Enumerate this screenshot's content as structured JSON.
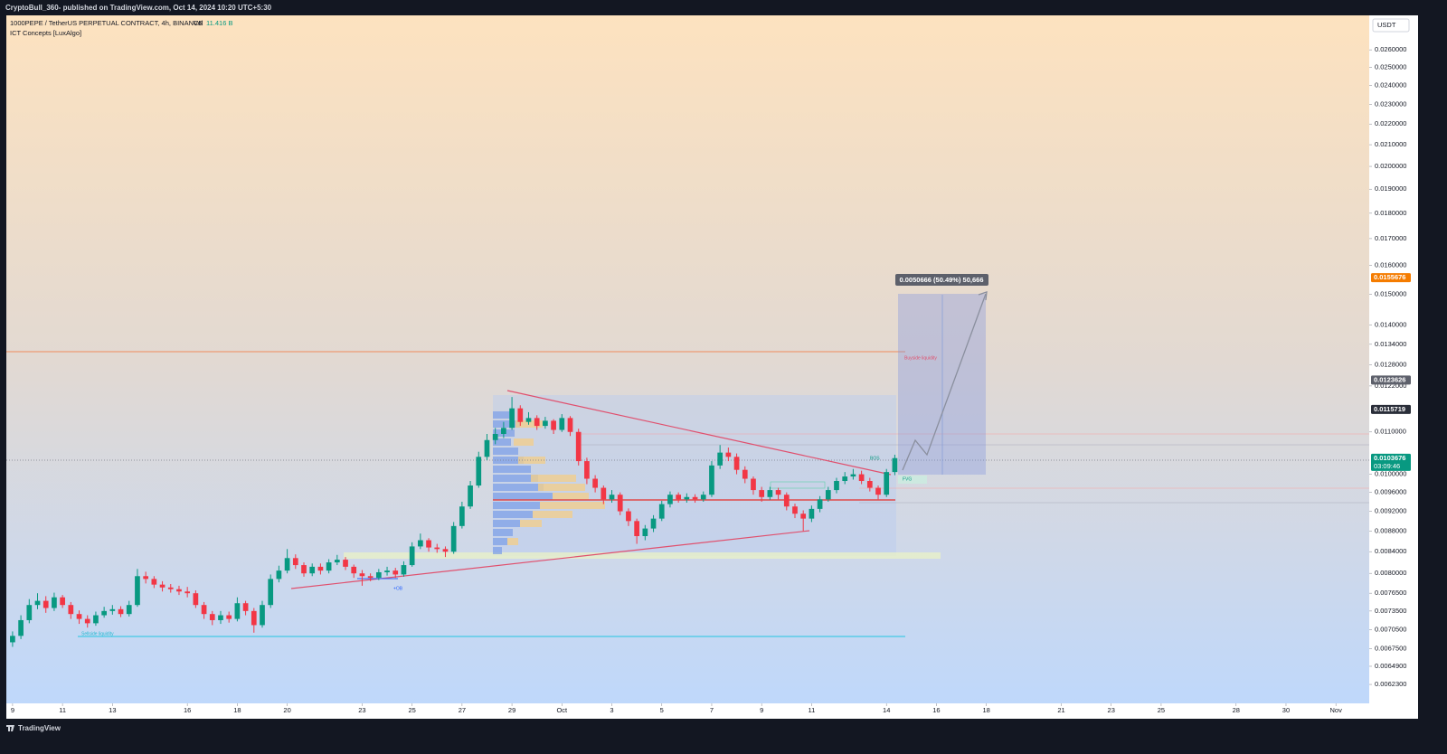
{
  "header": {
    "byline": "CryptoBull_360- published on TradingView.com, Oct 14, 2024 10:20 UTC+5:30"
  },
  "chart_data": {
    "type": "candlestick",
    "title": "1000PEPE / TetherUS PERPETUAL CONTRACT, 4h, BINANCE",
    "volume_label": "Vol",
    "volume_value": "11.416 B",
    "indicator": "ICT Concepts [LuxAlgo]",
    "y_unit": "USDT",
    "log_scale": true,
    "up_color": "#089981",
    "down_color": "#f23645",
    "x": [
      "2024-09-09T00:00",
      "2024-09-09T08:00",
      "2024-09-09T16:00",
      "2024-09-10T00:00",
      "2024-09-10T08:00",
      "2024-09-10T16:00",
      "2024-09-11T00:00",
      "2024-09-11T08:00",
      "2024-09-11T16:00",
      "2024-09-12T00:00",
      "2024-09-12T08:00",
      "2024-09-12T16:00",
      "2024-09-13T00:00",
      "2024-09-13T08:00",
      "2024-09-13T16:00",
      "2024-09-14T00:00",
      "2024-09-14T08:00",
      "2024-09-14T16:00",
      "2024-09-15T00:00",
      "2024-09-15T08:00",
      "2024-09-15T16:00",
      "2024-09-16T00:00",
      "2024-09-16T08:00",
      "2024-09-16T16:00",
      "2024-09-17T00:00",
      "2024-09-17T08:00",
      "2024-09-17T16:00",
      "2024-09-18T00:00",
      "2024-09-18T08:00",
      "2024-09-18T16:00",
      "2024-09-19T00:00",
      "2024-09-19T08:00",
      "2024-09-19T16:00",
      "2024-09-20T00:00",
      "2024-09-20T08:00",
      "2024-09-20T16:00",
      "2024-09-21T00:00",
      "2024-09-21T08:00",
      "2024-09-21T16:00",
      "2024-09-22T00:00",
      "2024-09-22T08:00",
      "2024-09-22T16:00",
      "2024-09-23T00:00",
      "2024-09-23T08:00",
      "2024-09-23T16:00",
      "2024-09-24T00:00",
      "2024-09-24T08:00",
      "2024-09-24T16:00",
      "2024-09-25T00:00",
      "2024-09-25T08:00",
      "2024-09-25T16:00",
      "2024-09-26T00:00",
      "2024-09-26T08:00",
      "2024-09-26T16:00",
      "2024-09-27T00:00",
      "2024-09-27T08:00",
      "2024-09-27T16:00",
      "2024-09-28T00:00",
      "2024-09-28T08:00",
      "2024-09-28T16:00",
      "2024-09-29T00:00",
      "2024-09-29T08:00",
      "2024-09-29T16:00",
      "2024-09-30T00:00",
      "2024-09-30T08:00",
      "2024-09-30T16:00",
      "2024-10-01T00:00",
      "2024-10-01T08:00",
      "2024-10-01T16:00",
      "2024-10-02T00:00",
      "2024-10-02T08:00",
      "2024-10-02T16:00",
      "2024-10-03T00:00",
      "2024-10-03T08:00",
      "2024-10-03T16:00",
      "2024-10-04T00:00",
      "2024-10-04T08:00",
      "2024-10-04T16:00",
      "2024-10-05T00:00",
      "2024-10-05T08:00",
      "2024-10-05T16:00",
      "2024-10-06T00:00",
      "2024-10-06T08:00",
      "2024-10-06T16:00",
      "2024-10-07T00:00",
      "2024-10-07T08:00",
      "2024-10-07T16:00",
      "2024-10-08T00:00",
      "2024-10-08T08:00",
      "2024-10-08T16:00",
      "2024-10-09T00:00",
      "2024-10-09T08:00",
      "2024-10-09T16:00",
      "2024-10-10T00:00",
      "2024-10-10T08:00",
      "2024-10-10T16:00",
      "2024-10-11T00:00",
      "2024-10-11T08:00",
      "2024-10-11T16:00",
      "2024-10-12T00:00",
      "2024-10-12T08:00",
      "2024-10-12T16:00",
      "2024-10-13T00:00",
      "2024-10-13T08:00",
      "2024-10-13T16:00",
      "2024-10-14T00:00",
      "2024-10-14T08:00"
    ],
    "open": [
      0.00685,
      0.00695,
      0.0072,
      0.00745,
      0.00752,
      0.0074,
      0.00758,
      0.00745,
      0.0073,
      0.00722,
      0.00715,
      0.00728,
      0.00735,
      0.00738,
      0.0073,
      0.00745,
      0.00795,
      0.0079,
      0.0078,
      0.00775,
      0.00772,
      0.00768,
      0.00765,
      0.00745,
      0.0073,
      0.0072,
      0.00728,
      0.00722,
      0.00748,
      0.00735,
      0.00712,
      0.00745,
      0.0079,
      0.00805,
      0.00828,
      0.00815,
      0.008,
      0.00812,
      0.00805,
      0.0082,
      0.00825,
      0.00812,
      0.008,
      0.00795,
      0.00792,
      0.00802,
      0.00805,
      0.00798,
      0.00815,
      0.0085,
      0.00862,
      0.00848,
      0.00845,
      0.0084,
      0.0089,
      0.0093,
      0.00975,
      0.0104,
      0.0108,
      0.01095,
      0.0111,
      0.0116,
      0.01125,
      0.01135,
      0.01115,
      0.01128,
      0.01105,
      0.01135,
      0.011,
      0.0103,
      0.0099,
      0.0097,
      0.00945,
      0.00955,
      0.0092,
      0.009,
      0.0087,
      0.00885,
      0.00905,
      0.00935,
      0.00955,
      0.00945,
      0.0095,
      0.00945,
      0.00955,
      0.0102,
      0.0105,
      0.0104,
      0.0101,
      0.0099,
      0.00965,
      0.0095,
      0.00965,
      0.00955,
      0.0093,
      0.00915,
      0.00905,
      0.00925,
      0.00945,
      0.00965,
      0.00985,
      0.00995,
      0.01,
      0.00985,
      0.0097,
      0.00955,
      0.01005
    ],
    "high": [
      0.00702,
      0.00728,
      0.00755,
      0.00765,
      0.0076,
      0.00766,
      0.00762,
      0.0075,
      0.00736,
      0.00728,
      0.00734,
      0.00742,
      0.00745,
      0.00743,
      0.00752,
      0.00808,
      0.00803,
      0.00795,
      0.00786,
      0.00781,
      0.00778,
      0.00776,
      0.0077,
      0.0075,
      0.00735,
      0.00735,
      0.00734,
      0.00758,
      0.00752,
      0.0074,
      0.00752,
      0.00798,
      0.00814,
      0.00845,
      0.00835,
      0.0082,
      0.00818,
      0.00818,
      0.00826,
      0.00834,
      0.0083,
      0.00816,
      0.00806,
      0.008,
      0.00808,
      0.00812,
      0.0081,
      0.00822,
      0.00858,
      0.00875,
      0.00866,
      0.00855,
      0.0085,
      0.00898,
      0.0094,
      0.00985,
      0.01052,
      0.01095,
      0.0111,
      0.01125,
      0.0119,
      0.01168,
      0.0115,
      0.01142,
      0.01138,
      0.01132,
      0.01145,
      0.0114,
      0.01108,
      0.01038,
      0.00998,
      0.00975,
      0.00965,
      0.0096,
      0.00926,
      0.00905,
      0.00892,
      0.00912,
      0.00942,
      0.00962,
      0.0096,
      0.00958,
      0.00956,
      0.00962,
      0.0103,
      0.01068,
      0.01062,
      0.01048,
      0.01018,
      0.00995,
      0.00972,
      0.00972,
      0.0097,
      0.0096,
      0.00936,
      0.00922,
      0.00932,
      0.00952,
      0.00972,
      0.00992,
      0.01005,
      0.01012,
      0.01008,
      0.00992,
      0.00975,
      0.01012,
      0.01045
    ],
    "low": [
      0.00678,
      0.0069,
      0.00715,
      0.00738,
      0.00732,
      0.00735,
      0.0074,
      0.00722,
      0.00714,
      0.00708,
      0.00711,
      0.00724,
      0.00729,
      0.00725,
      0.00726,
      0.00742,
      0.00782,
      0.00774,
      0.00768,
      0.00766,
      0.00762,
      0.00758,
      0.0074,
      0.00722,
      0.00712,
      0.00714,
      0.00716,
      0.00718,
      0.00728,
      0.007,
      0.00708,
      0.0074,
      0.00784,
      0.008,
      0.00808,
      0.00794,
      0.00795,
      0.00798,
      0.008,
      0.00815,
      0.00806,
      0.00792,
      0.00778,
      0.00786,
      0.00788,
      0.00796,
      0.00792,
      0.00794,
      0.00812,
      0.00845,
      0.0084,
      0.00838,
      0.0083,
      0.00836,
      0.00885,
      0.00925,
      0.0097,
      0.01032,
      0.0107,
      0.01085,
      0.01105,
      0.01115,
      0.01118,
      0.01105,
      0.01108,
      0.01095,
      0.011,
      0.0109,
      0.0102,
      0.00978,
      0.0096,
      0.00935,
      0.00938,
      0.00912,
      0.0089,
      0.00855,
      0.00862,
      0.00878,
      0.009,
      0.00928,
      0.00938,
      0.00938,
      0.00938,
      0.0094,
      0.0095,
      0.01012,
      0.0103,
      0.01,
      0.0098,
      0.00955,
      0.0094,
      0.00944,
      0.00945,
      0.00922,
      0.00906,
      0.0088,
      0.00898,
      0.00918,
      0.0094,
      0.00958,
      0.00978,
      0.00988,
      0.00978,
      0.00962,
      0.00945,
      0.0095,
      0.00998
    ],
    "close": [
      0.00695,
      0.0072,
      0.00745,
      0.00752,
      0.0074,
      0.00758,
      0.00745,
      0.0073,
      0.00722,
      0.00715,
      0.00728,
      0.00735,
      0.00738,
      0.0073,
      0.00745,
      0.00795,
      0.0079,
      0.0078,
      0.00775,
      0.00772,
      0.00768,
      0.00765,
      0.00745,
      0.0073,
      0.0072,
      0.00728,
      0.00722,
      0.00748,
      0.00735,
      0.00712,
      0.00745,
      0.0079,
      0.00805,
      0.00828,
      0.00815,
      0.008,
      0.00812,
      0.00805,
      0.0082,
      0.00825,
      0.00812,
      0.008,
      0.00795,
      0.00792,
      0.00802,
      0.00805,
      0.00798,
      0.00815,
      0.0085,
      0.00862,
      0.00848,
      0.00845,
      0.0084,
      0.0089,
      0.0093,
      0.00975,
      0.0104,
      0.0108,
      0.01095,
      0.0111,
      0.0116,
      0.01125,
      0.01135,
      0.01115,
      0.01128,
      0.01105,
      0.01135,
      0.011,
      0.0103,
      0.0099,
      0.0097,
      0.00945,
      0.00955,
      0.0092,
      0.009,
      0.0087,
      0.00885,
      0.00905,
      0.00935,
      0.00955,
      0.00945,
      0.0095,
      0.00945,
      0.00955,
      0.0102,
      0.0105,
      0.0104,
      0.0101,
      0.0099,
      0.00965,
      0.0095,
      0.00965,
      0.00955,
      0.0093,
      0.00915,
      0.00905,
      0.00925,
      0.00945,
      0.00965,
      0.00985,
      0.00995,
      0.01,
      0.00985,
      0.0097,
      0.00955,
      0.01005,
      0.01037
    ],
    "xlim": [
      "2024-09-08T18:00",
      "2024-11-02T08:00"
    ],
    "xticks": [
      {
        "value": "2024-09-09",
        "label": "9"
      },
      {
        "value": "2024-09-11",
        "label": "11"
      },
      {
        "value": "2024-09-13",
        "label": "13"
      },
      {
        "value": "2024-09-16",
        "label": "16"
      },
      {
        "value": "2024-09-18",
        "label": "18"
      },
      {
        "value": "2024-09-20",
        "label": "20"
      },
      {
        "value": "2024-09-23",
        "label": "23"
      },
      {
        "value": "2024-09-25",
        "label": "25"
      },
      {
        "value": "2024-09-27",
        "label": "27"
      },
      {
        "value": "2024-09-29",
        "label": "29"
      },
      {
        "value": "2024-10-01",
        "label": "Oct"
      },
      {
        "value": "2024-10-03",
        "label": "3"
      },
      {
        "value": "2024-10-05",
        "label": "5"
      },
      {
        "value": "2024-10-07",
        "label": "7"
      },
      {
        "value": "2024-10-09",
        "label": "9"
      },
      {
        "value": "2024-10-11",
        "label": "11"
      },
      {
        "value": "2024-10-14",
        "label": "14"
      },
      {
        "value": "2024-10-16",
        "label": "16"
      },
      {
        "value": "2024-10-18",
        "label": "18"
      },
      {
        "value": "2024-10-21",
        "label": "21"
      },
      {
        "value": "2024-10-23",
        "label": "23"
      },
      {
        "value": "2024-10-25",
        "label": "25"
      },
      {
        "value": "2024-10-28",
        "label": "28"
      },
      {
        "value": "2024-10-30",
        "label": "30"
      },
      {
        "value": "2024-11-01",
        "label": "Nov"
      }
    ],
    "ylim": [
      0.00597,
      0.0281
    ],
    "yticks": [
      {
        "value": 0.026,
        "label": "0.0260000"
      },
      {
        "value": 0.025,
        "label": "0.0250000"
      },
      {
        "value": 0.024,
        "label": "0.0240000"
      },
      {
        "value": 0.023,
        "label": "0.0230000"
      },
      {
        "value": 0.022,
        "label": "0.0220000"
      },
      {
        "value": 0.021,
        "label": "0.0210000"
      },
      {
        "value": 0.02,
        "label": "0.0200000"
      },
      {
        "value": 0.019,
        "label": "0.0190000"
      },
      {
        "value": 0.018,
        "label": "0.0180000"
      },
      {
        "value": 0.017,
        "label": "0.0170000"
      },
      {
        "value": 0.016,
        "label": "0.0160000"
      },
      {
        "value": 0.015,
        "label": "0.0150000"
      },
      {
        "value": 0.014,
        "label": "0.0140000"
      },
      {
        "value": 0.0134,
        "label": "0.0134000"
      },
      {
        "value": 0.0128,
        "label": "0.0128000"
      },
      {
        "value": 0.0122,
        "label": "0.0122000"
      },
      {
        "value": 0.011,
        "label": "0.0110000"
      },
      {
        "value": 0.01,
        "label": "0.0100000"
      },
      {
        "value": 0.0096,
        "label": "0.0096000"
      },
      {
        "value": 0.0092,
        "label": "0.0092000"
      },
      {
        "value": 0.0088,
        "label": "0.0088000"
      },
      {
        "value": 0.0084,
        "label": "0.0084000"
      },
      {
        "value": 0.008,
        "label": "0.0080000"
      },
      {
        "value": 0.00765,
        "label": "0.0076500"
      },
      {
        "value": 0.00735,
        "label": "0.0073500"
      },
      {
        "value": 0.00705,
        "label": "0.0070500"
      },
      {
        "value": 0.00675,
        "label": "0.0067500"
      },
      {
        "value": 0.00649,
        "label": "0.0064900"
      },
      {
        "value": 0.00623,
        "label": "0.0062300"
      }
    ],
    "price_labels": [
      {
        "value": 0.0155676,
        "color": "#f57c00"
      },
      {
        "value": 0.0123626,
        "color": "#5d606b"
      },
      {
        "value": 0.0115719,
        "color": "#2a2e39"
      },
      {
        "value": 0.0103676,
        "color": "#089981"
      }
    ],
    "countdown": "03:09:46",
    "measure_label": "0.0050666 (50.49%) 50,666",
    "annotations": [
      "Buyside liquidity",
      "Sellside liquidity",
      "+OB",
      "BOS",
      "FVG"
    ]
  },
  "footer": {
    "brand": "TradingView"
  }
}
